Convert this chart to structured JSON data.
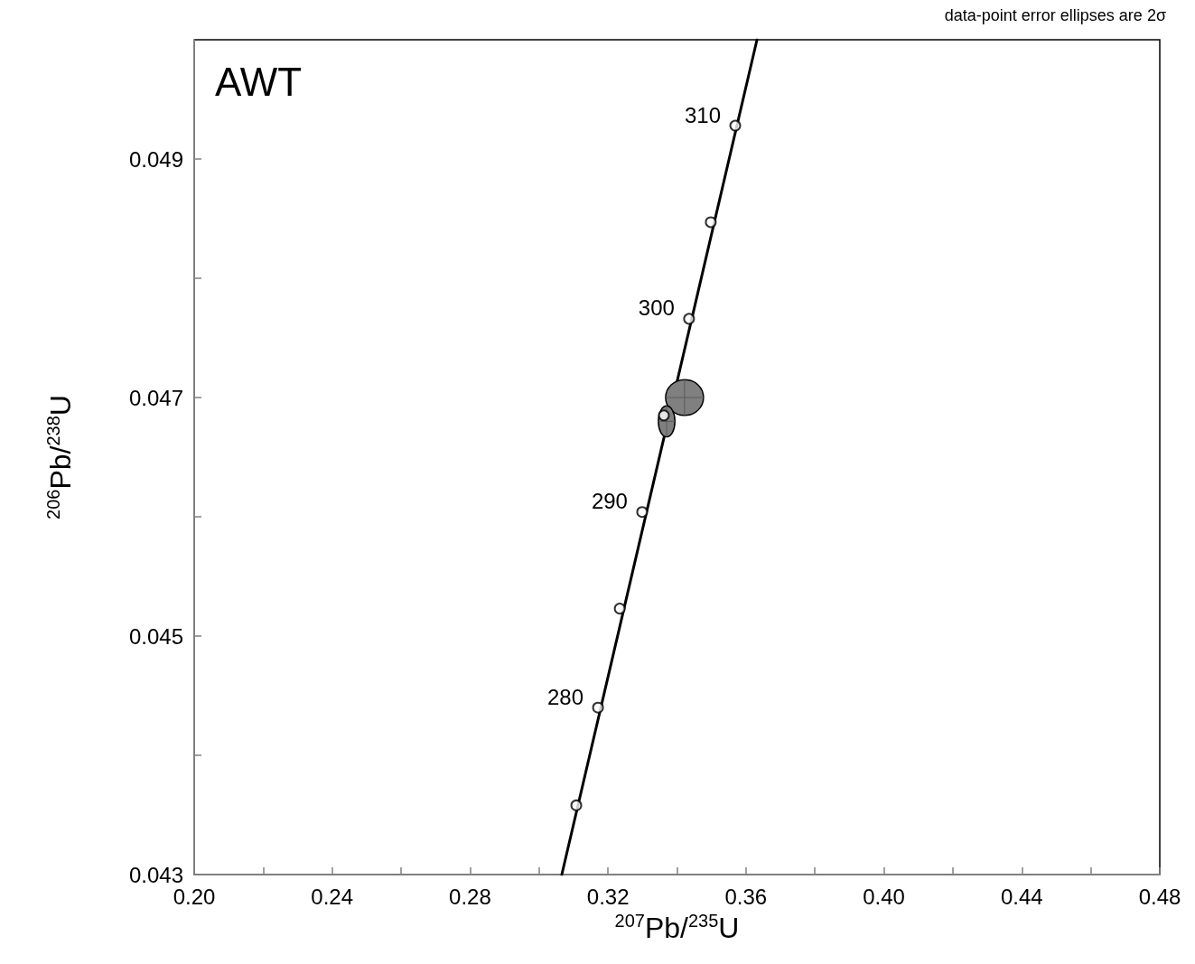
{
  "chart_data": {
    "type": "line",
    "title": "AWT",
    "xlabel": "$^{207}$Pb/$^{235}$U",
    "ylabel": "$^{206}$Pb/$^{238}$U",
    "xlim": [
      0.2,
      0.48
    ],
    "xticks": [
      {
        "value": 0.2,
        "label": "0.20"
      },
      {
        "value": 0.22,
        "label": null
      },
      0.24,
      {
        "value": 0.26,
        "label": null
      },
      0.28,
      {
        "value": 0.3,
        "label": null
      },
      0.32,
      {
        "value": 0.34,
        "label": null
      },
      0.36,
      {
        "value": 0.38,
        "label": null
      },
      {
        "value": 0.4,
        "label": "0.40"
      },
      {
        "value": 0.42,
        "label": null
      },
      0.44,
      {
        "value": 0.46,
        "label": null
      },
      0.48
    ],
    "ylim": [
      0.043,
      0.05
    ],
    "yticks": [
      0.043,
      {
        "value": 0.044,
        "label": null
      },
      0.045,
      {
        "value": 0.046,
        "label": null
      },
      0.047,
      {
        "value": 0.048,
        "label": null
      },
      0.049
    ],
    "grid": false,
    "series": [
      {
        "color": "#000000",
        "marker": "none",
        "x": [
          0.3066,
          0.3632
        ],
        "values": [
          0.043,
          0.05
        ]
      },
      {
        "type": "scatter",
        "color": "#000000",
        "marker": "circle",
        "x": [
          0.3108,
          0.3171,
          0.3234,
          0.3299,
          0.3362,
          0.3435,
          0.3498,
          0.3569
        ],
        "values": [
          0.04358,
          0.0444,
          0.04523,
          0.04604,
          0.04685,
          0.04766,
          0.04847,
          0.04928
        ]
      },
      {
        "type": "scatter",
        "color": "#808080",
        "x": [
          0.3422,
          0.337
        ],
        "values": [
          0.047,
          0.0468
        ],
        "xerrors": [
          0.0055,
          0.0024
        ],
        "errors": [
          0.00015,
          0.00013
        ]
      }
    ],
    "annotations": [
      {
        "text": "310",
        "x": 0.3569,
        "y": 0.04928
      },
      {
        "text": "300",
        "x": 0.3435,
        "y": 0.04766
      },
      {
        "text": "290",
        "x": 0.3299,
        "y": 0.04604
      },
      {
        "text": "280",
        "x": 0.3171,
        "y": 0.0444
      },
      "data-point error ellipses are 2σ"
    ]
  }
}
